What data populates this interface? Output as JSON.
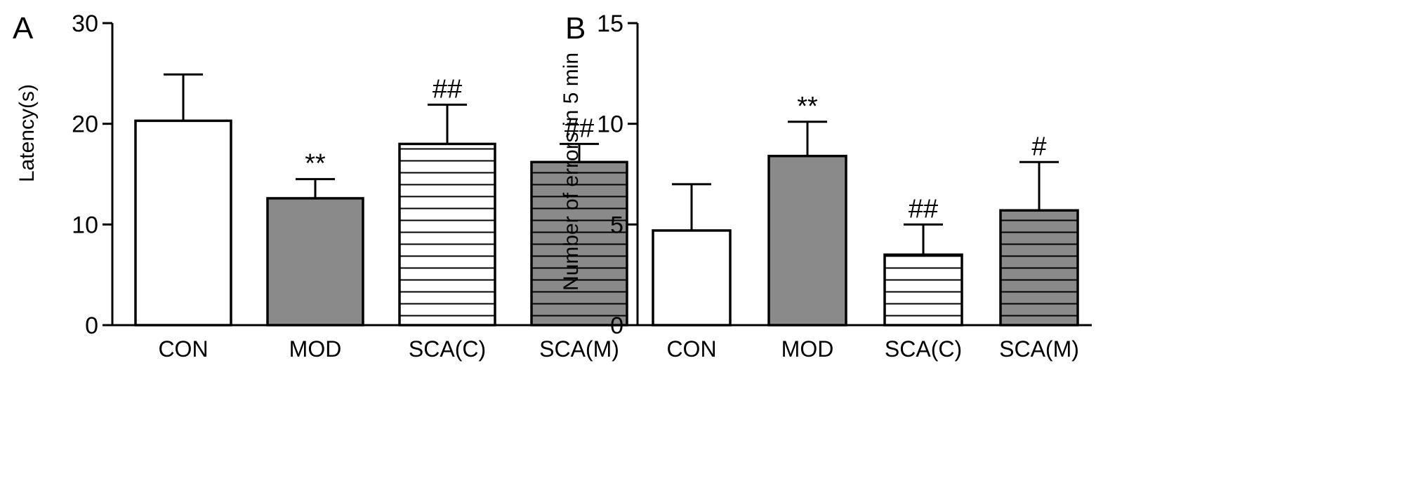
{
  "chart_data": [
    {
      "panel_label": "A",
      "type": "bar",
      "categories": [
        "CON",
        "MOD",
        "SCA(C)",
        "SCA(M)"
      ],
      "values": [
        20.3,
        12.6,
        18.0,
        16.2
      ],
      "errors": [
        4.6,
        1.9,
        3.9,
        1.8
      ],
      "annotations": [
        "",
        "**",
        "##",
        "##"
      ],
      "bar_styles": [
        "white",
        "gray",
        "white-striped",
        "gray-striped"
      ],
      "ylabel": "Latency(s)",
      "xlabel": "",
      "ylim": [
        0,
        30
      ],
      "yticks": [
        0,
        10,
        20,
        30
      ],
      "grid": false,
      "legend": "none"
    },
    {
      "panel_label": "B",
      "type": "bar",
      "categories": [
        "CON",
        "MOD",
        "SCA(C)",
        "SCA(M)"
      ],
      "values": [
        4.7,
        8.4,
        3.5,
        5.7
      ],
      "errors": [
        2.3,
        1.7,
        1.5,
        2.4
      ],
      "annotations": [
        "",
        "**",
        "##",
        "#"
      ],
      "bar_styles": [
        "white",
        "gray",
        "white-striped",
        "gray-striped"
      ],
      "ylabel": "Number of errors in 5 min",
      "xlabel": "",
      "ylim": [
        0,
        15
      ],
      "yticks": [
        0,
        5,
        10,
        15
      ],
      "grid": false,
      "legend": "none"
    }
  ],
  "colors": {
    "gray_fill": "#8a8a8a",
    "white_fill": "#ffffff",
    "stroke": "#000000"
  }
}
